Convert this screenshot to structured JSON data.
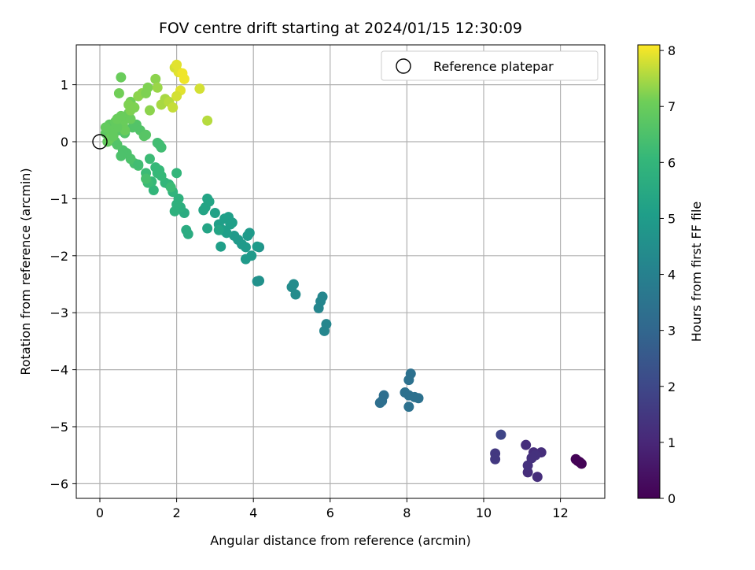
{
  "chart_data": {
    "type": "scatter",
    "title": "FOV centre drift starting at 2024/01/15 12:30:09",
    "xlabel": "Angular distance from reference (arcmin)",
    "ylabel": "Rotation from reference (arcmin)",
    "xlim": [
      -0.6,
      13.1
    ],
    "ylim": [
      -6.25,
      1.7
    ],
    "xticks": [
      0,
      2,
      4,
      6,
      8,
      10,
      12
    ],
    "yticks": [
      -6,
      -5,
      -4,
      -3,
      -2,
      -1,
      0,
      1
    ],
    "grid": true,
    "legend": {
      "placement": "top-right",
      "entries": [
        "Reference platepar"
      ]
    },
    "reference_point": {
      "x": 0,
      "y": 0,
      "marker": "open-circle"
    },
    "colorbar": {
      "label": "Hours from first FF file",
      "colormap": "viridis",
      "range": [
        0,
        8.1
      ],
      "ticks": [
        0,
        1,
        2,
        3,
        4,
        5,
        6,
        7,
        8
      ]
    },
    "series": [
      {
        "color_by": "hours",
        "x": [
          12.4,
          12.45,
          12.5,
          12.55,
          11.1,
          11.15,
          11.25,
          11.3,
          11.4,
          11.5,
          10.3,
          10.3,
          10.45,
          11.35,
          11.25,
          11.15,
          7.3,
          7.35,
          7.4,
          7.95,
          8.05,
          8.1,
          8.2,
          8.3,
          8.05,
          8.05,
          5.7,
          5.75,
          5.8,
          5.85,
          5.9,
          5.0,
          5.05,
          5.1,
          4.1,
          4.15,
          4.15,
          3.5,
          3.6,
          3.7,
          3.8,
          3.85,
          3.9,
          3.95,
          3.8,
          4.1,
          3.3,
          3.2,
          3.4,
          3.1,
          3.15,
          3.35,
          3.25,
          3.0,
          3.45,
          2.8,
          2.75,
          2.85,
          2.7,
          2.8,
          3.1,
          2.2,
          2.25,
          2.3,
          2.1,
          2.0,
          2.05,
          1.95,
          1.9,
          2.0,
          1.8,
          1.7,
          1.6,
          1.5,
          1.55,
          1.45,
          1.4,
          1.35,
          1.25,
          1.2,
          1.3,
          1.5,
          1.55,
          1.6,
          1.0,
          0.9,
          0.8,
          0.7,
          0.6,
          0.55,
          0.45,
          0.4,
          0.5,
          0.65,
          0.85,
          0.95,
          1.05,
          1.15,
          1.2,
          0.3,
          0.2,
          0.15,
          0.25,
          0.35,
          0.4,
          0.5,
          0.55,
          0.6,
          0.7,
          0.8,
          0.75,
          0.65,
          0.45,
          0.3,
          0.25,
          0.15,
          0.35,
          0.45,
          0.55,
          0.5,
          0.55,
          0.8,
          0.75,
          0.9,
          1.0,
          1.1,
          1.2,
          1.25,
          1.3,
          1.45,
          1.5,
          1.6,
          1.7,
          1.8,
          1.9,
          1.95,
          2.0,
          2.05,
          2.1,
          2.15,
          2.2,
          2.6,
          2.8,
          2.0,
          1.85,
          1.0,
          1.2,
          0.8
        ],
        "y": [
          -5.57,
          -5.6,
          -5.62,
          -5.65,
          -5.32,
          -5.8,
          -5.55,
          -5.45,
          -5.88,
          -5.45,
          -5.47,
          -5.57,
          -5.14,
          -5.5,
          -5.55,
          -5.68,
          -4.58,
          -4.55,
          -4.45,
          -4.4,
          -4.45,
          -4.07,
          -4.48,
          -4.5,
          -4.18,
          -4.65,
          -2.92,
          -2.8,
          -2.72,
          -3.32,
          -3.2,
          -2.55,
          -2.5,
          -2.68,
          -2.45,
          -2.44,
          -1.85,
          -1.65,
          -1.72,
          -1.8,
          -1.85,
          -1.65,
          -1.6,
          -2.0,
          -2.06,
          -1.84,
          -1.6,
          -1.55,
          -1.45,
          -1.45,
          -1.84,
          -1.32,
          -1.35,
          -1.25,
          -1.42,
          -1.0,
          -1.15,
          -1.05,
          -1.2,
          -1.52,
          -1.55,
          -1.25,
          -1.55,
          -1.62,
          -1.15,
          -1.1,
          -1.0,
          -1.22,
          -0.88,
          -0.55,
          -0.75,
          -0.72,
          -0.6,
          -0.55,
          -0.5,
          -0.45,
          -0.85,
          -0.7,
          -0.72,
          -0.55,
          -0.3,
          -0.02,
          -0.05,
          -0.1,
          -0.42,
          -0.38,
          -0.3,
          -0.2,
          -0.15,
          -0.25,
          -0.05,
          0.0,
          0.2,
          0.15,
          0.25,
          0.3,
          0.2,
          0.1,
          0.12,
          0.1,
          0.0,
          0.15,
          0.3,
          0.2,
          0.35,
          0.4,
          0.35,
          0.3,
          0.45,
          0.4,
          0.5,
          0.2,
          0.25,
          0.15,
          0.05,
          0.25,
          0.1,
          0.4,
          0.45,
          0.85,
          1.13,
          0.7,
          0.65,
          0.6,
          0.8,
          0.85,
          0.85,
          0.95,
          0.55,
          1.1,
          0.95,
          0.65,
          0.75,
          0.7,
          0.6,
          1.3,
          1.35,
          1.22,
          0.9,
          1.2,
          1.1,
          0.93,
          0.37,
          0.8,
          -0.8,
          -0.4,
          -0.65,
          0.55
        ],
        "hours": [
          0.05,
          0.05,
          0.05,
          0.05,
          1.2,
          1.2,
          1.2,
          1.2,
          1.2,
          1.2,
          1.5,
          1.5,
          1.9,
          1.3,
          1.3,
          1.3,
          3.3,
          3.3,
          3.3,
          3.4,
          3.4,
          3.4,
          3.4,
          3.4,
          3.4,
          3.4,
          4.2,
          4.2,
          4.2,
          4.2,
          4.2,
          4.4,
          4.4,
          4.4,
          4.6,
          4.6,
          4.6,
          4.9,
          4.9,
          4.9,
          4.9,
          4.9,
          4.9,
          4.9,
          4.9,
          4.9,
          5.1,
          5.1,
          5.1,
          5.1,
          5.1,
          5.1,
          5.1,
          5.2,
          5.1,
          5.3,
          5.3,
          5.3,
          5.3,
          5.3,
          5.3,
          5.6,
          5.6,
          5.6,
          5.7,
          5.8,
          5.8,
          5.8,
          5.9,
          6.0,
          6.0,
          6.0,
          6.1,
          6.1,
          6.1,
          6.1,
          6.0,
          6.1,
          6.2,
          6.2,
          6.2,
          6.3,
          6.3,
          6.3,
          6.4,
          6.4,
          6.5,
          6.5,
          6.5,
          6.5,
          6.6,
          6.6,
          6.7,
          6.6,
          6.6,
          6.6,
          6.6,
          6.7,
          6.7,
          6.8,
          6.9,
          6.8,
          6.8,
          6.9,
          6.9,
          6.9,
          6.9,
          7.0,
          7.0,
          7.0,
          7.0,
          7.0,
          6.9,
          6.9,
          7.0,
          6.9,
          6.9,
          7.0,
          7.0,
          7.1,
          7.0,
          7.1,
          7.2,
          7.2,
          7.3,
          7.3,
          7.2,
          7.2,
          7.3,
          7.3,
          7.4,
          7.5,
          7.5,
          7.6,
          7.7,
          7.8,
          7.9,
          7.9,
          7.9,
          8.0,
          8.0,
          7.8,
          7.6,
          7.8,
          6.2,
          6.3,
          6.4,
          7.2
        ]
      }
    ]
  }
}
